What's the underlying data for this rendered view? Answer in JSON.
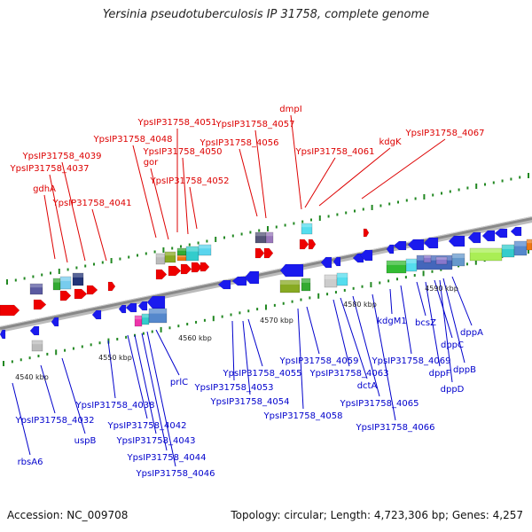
{
  "title": "Yersinia pseudotuberculosis IP 31758, complete genome",
  "footer": {
    "accession": "Accession: NC_009708",
    "summary": "Topology: circular; Length: 4,723,306 bp; Genes: 4,257"
  },
  "colors": {
    "forward_label": "#dd0000",
    "reverse_label": "#0000cc",
    "forward_gene": "#ee0000",
    "reverse_gene": "#1a1aee",
    "backbone": "#888888",
    "tick_mark": "#228822"
  },
  "scale_labels": [
    "4540 kbp",
    "4550 kbp",
    "4560 kbp",
    "4570 kbp",
    "4580 kbp",
    "4590 kbp"
  ],
  "forward_labels": [
    "gdhA",
    "YpsIP31758_4037",
    "YpsIP31758_4039",
    "YpsIP31758_4041",
    "YpsIP31758_4048",
    "gor",
    "YpsIP31758_4050",
    "YpsIP31758_4051",
    "YpsIP31758_4052",
    "YpsIP31758_4056",
    "YpsIP31758_4057",
    "dmpI",
    "YpsIP31758_4061",
    "kdgK",
    "YpsIP31758_4067"
  ],
  "reverse_labels": [
    "rbsA6",
    "YpsIP31758_4032",
    "uspB",
    "YpsIP31758_4038",
    "YpsIP31758_4042",
    "YpsIP31758_4043",
    "YpsIP31758_4044",
    "YpsIP31758_4046",
    "prlC",
    "YpsIP31758_4053",
    "YpsIP31758_4054",
    "YpsIP31758_4055",
    "YpsIP31758_4058",
    "YpsIP31758_4059",
    "dctA",
    "YpsIP31758_4063",
    "YpsIP31758_4065",
    "YpsIP31758_4066",
    "kdgM1",
    "YpsIP31758_4069",
    "bcsZ",
    "dppF",
    "dppC",
    "dppD",
    "dppB",
    "dppA"
  ]
}
